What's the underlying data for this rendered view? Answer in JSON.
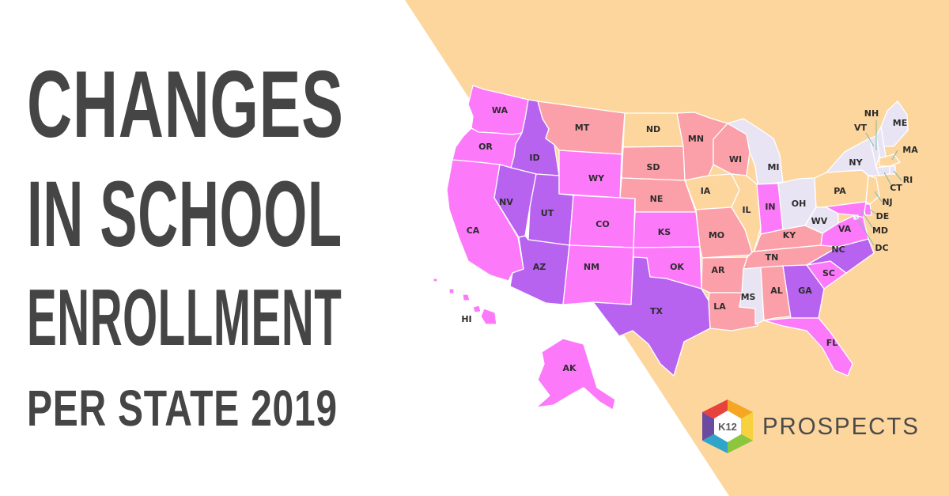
{
  "title": {
    "line1": "CHANGES",
    "line2": "IN SCHOOL",
    "line3": "ENROLLMENT",
    "line4": "PER STATE 2019"
  },
  "colors": {
    "background_left": "#ffffff",
    "background_right": "#fdd69d",
    "title_text": "#454545",
    "category_colors": [
      "#b763f0",
      "#fc79fa",
      "#fba0a8",
      "#fdd69d",
      "#e8e4f4"
    ]
  },
  "map": {
    "states": [
      {
        "id": "WA",
        "label": "WA",
        "category": 1
      },
      {
        "id": "OR",
        "label": "OR",
        "category": 1
      },
      {
        "id": "CA",
        "label": "CA",
        "category": 1
      },
      {
        "id": "ID",
        "label": "ID",
        "category": 0
      },
      {
        "id": "NV",
        "label": "NV",
        "category": 0
      },
      {
        "id": "UT",
        "label": "UT",
        "category": 0
      },
      {
        "id": "AZ",
        "label": "AZ",
        "category": 0
      },
      {
        "id": "MT",
        "label": "MT",
        "category": 2
      },
      {
        "id": "WY",
        "label": "WY",
        "category": 1
      },
      {
        "id": "CO",
        "label": "CO",
        "category": 1
      },
      {
        "id": "NM",
        "label": "NM",
        "category": 1
      },
      {
        "id": "ND",
        "label": "ND",
        "category": 3
      },
      {
        "id": "SD",
        "label": "SD",
        "category": 2
      },
      {
        "id": "NE",
        "label": "NE",
        "category": 2
      },
      {
        "id": "KS",
        "label": "KS",
        "category": 1
      },
      {
        "id": "OK",
        "label": "OK",
        "category": 1
      },
      {
        "id": "TX",
        "label": "TX",
        "category": 0
      },
      {
        "id": "MN",
        "label": "MN",
        "category": 2
      },
      {
        "id": "IA",
        "label": "IA",
        "category": 3
      },
      {
        "id": "MO",
        "label": "MO",
        "category": 2
      },
      {
        "id": "AR",
        "label": "AR",
        "category": 2
      },
      {
        "id": "LA",
        "label": "LA",
        "category": 2
      },
      {
        "id": "WI",
        "label": "WI",
        "category": 2
      },
      {
        "id": "IL",
        "label": "IL",
        "category": 3
      },
      {
        "id": "MI",
        "label": "MI",
        "category": 4
      },
      {
        "id": "IN",
        "label": "IN",
        "category": 1
      },
      {
        "id": "OH",
        "label": "OH",
        "category": 4
      },
      {
        "id": "KY",
        "label": "KY",
        "category": 2
      },
      {
        "id": "TN",
        "label": "TN",
        "category": 2
      },
      {
        "id": "MS",
        "label": "MS",
        "category": 4
      },
      {
        "id": "AL",
        "label": "AL",
        "category": 2
      },
      {
        "id": "GA",
        "label": "GA",
        "category": 0
      },
      {
        "id": "FL",
        "label": "FL",
        "category": 1
      },
      {
        "id": "SC",
        "label": "SC",
        "category": 1
      },
      {
        "id": "NC",
        "label": "NC",
        "category": 0
      },
      {
        "id": "VA",
        "label": "VA",
        "category": 1
      },
      {
        "id": "WV",
        "label": "WV",
        "category": 4
      },
      {
        "id": "PA",
        "label": "PA",
        "category": 3
      },
      {
        "id": "NY",
        "label": "NY",
        "category": 4
      },
      {
        "id": "VT",
        "label": "VT",
        "category": 4
      },
      {
        "id": "NH",
        "label": "NH",
        "category": 4
      },
      {
        "id": "ME",
        "label": "ME",
        "category": 4
      },
      {
        "id": "MA",
        "label": "MA",
        "category": 3
      },
      {
        "id": "RI",
        "label": "RI",
        "category": 4
      },
      {
        "id": "CT",
        "label": "CT",
        "category": 4
      },
      {
        "id": "NJ",
        "label": "NJ",
        "category": 3
      },
      {
        "id": "DE",
        "label": "DE",
        "category": 1
      },
      {
        "id": "MD",
        "label": "MD",
        "category": 1
      },
      {
        "id": "DC",
        "label": "DC",
        "category": 4
      },
      {
        "id": "AK",
        "label": "AK",
        "category": 1
      },
      {
        "id": "HI",
        "label": "HI",
        "category": 1
      }
    ]
  },
  "logo": {
    "badge_text": "K12",
    "wordmark": "PROSPECTS",
    "colors": [
      "#e8423c",
      "#f5a623",
      "#f7d23e",
      "#8cc63f",
      "#2fa6c9",
      "#6a4ba0"
    ]
  }
}
